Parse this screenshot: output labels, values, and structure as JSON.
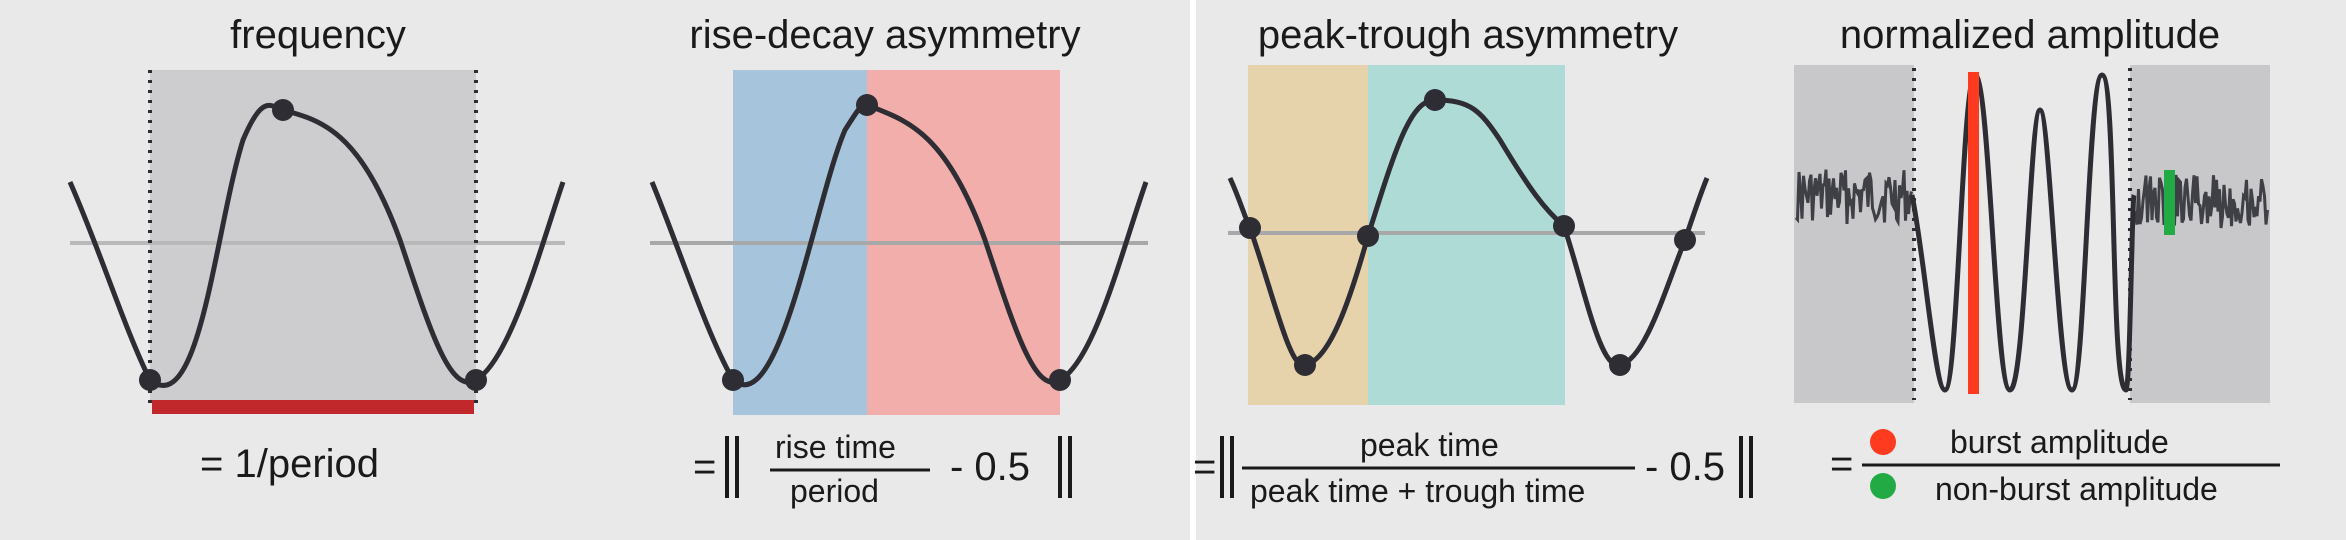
{
  "panels": [
    {
      "title": "frequency",
      "formula": "= 1/period"
    },
    {
      "title": "rise-decay asymmetry",
      "formula": {
        "prefix": "=",
        "numerator": "rise time",
        "denominator": "period",
        "suffix": "- 0.5"
      }
    },
    {
      "title": "peak-trough asymmetry",
      "formula": {
        "prefix": "=",
        "numerator": "peak time",
        "denominator": "peak time + trough time",
        "suffix": "- 0.5"
      }
    },
    {
      "title": "normalized amplitude",
      "formula": {
        "prefix": "=",
        "numerator": "burst amplitude",
        "denominator": "non-burst amplitude"
      }
    }
  ],
  "colors": {
    "panel_bg": "#e9e9e9",
    "shade_gray": "#c8c8cb",
    "rise_blue": "#9fc1dc",
    "decay_red": "#f2a7a4",
    "peak_teal": "#a9d9d5",
    "trough_tan": "#e6cfa4",
    "period_bar": "#c0282b",
    "burst_red": "#ff3b1f",
    "nonburst_green": "#22aa44",
    "wave": "#2d2d33"
  }
}
